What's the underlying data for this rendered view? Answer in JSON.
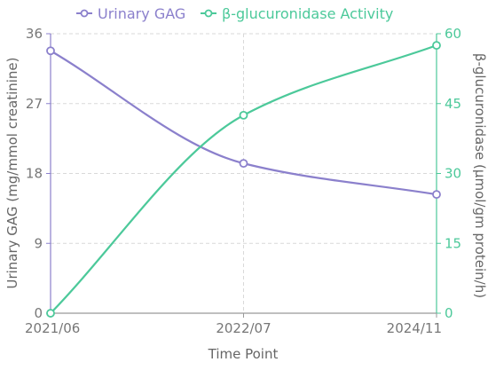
{
  "chart_data": {
    "type": "line",
    "x": [
      "2021/06",
      "2022/07",
      "2024/11"
    ],
    "xlabel": "Time Point",
    "legend_position": "top",
    "grid": true,
    "y_left": {
      "label": "Urinary GAG (mg/mmol creatinine)",
      "range": [
        0,
        36
      ],
      "ticks": [
        "0",
        "9",
        "18",
        "27",
        "36"
      ]
    },
    "y_right": {
      "label": "β-glucuronidase (μmol/gm protein/h)",
      "range": [
        0,
        60
      ],
      "ticks": [
        "0",
        "15",
        "30",
        "45",
        "60"
      ]
    },
    "series": [
      {
        "name": "Urinary GAG",
        "axis": "left",
        "color": "#8b80cc",
        "values": [
          33.8,
          19.3,
          15.3
        ]
      },
      {
        "name": "β-glucuronidase Activity",
        "axis": "right",
        "color": "#4cc99a",
        "values": [
          0,
          42.5,
          57.5
        ]
      }
    ]
  }
}
